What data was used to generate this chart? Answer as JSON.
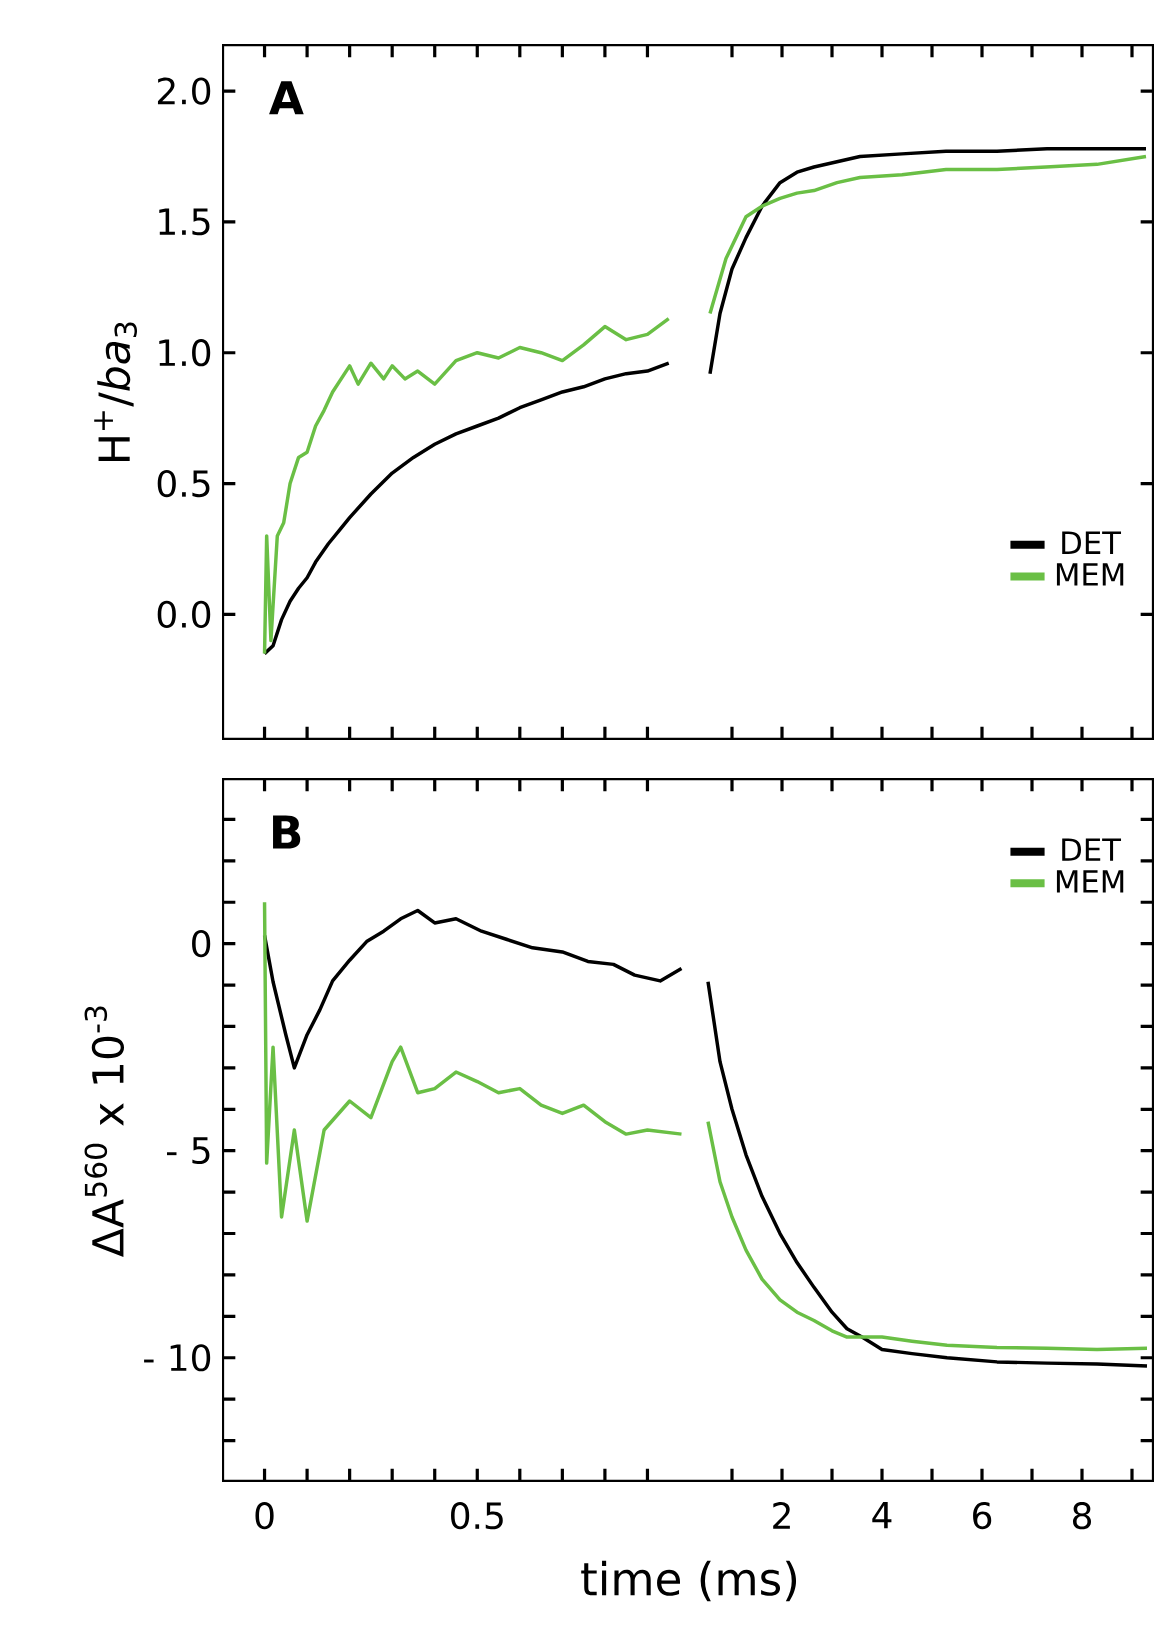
{
  "chart_data": [
    {
      "type": "line",
      "ylabel": "H$^{+}$/*ba*$_{3}$",
      "annotations": [
        "A"
      ],
      "xlim": [
        -0.1,
        1.0
      ],
      "ylim": [
        -0.48,
        2.18
      ],
      "xticks": [
        0,
        {
          "value": 0.1,
          "label": null
        },
        {
          "value": 0.2,
          "label": null
        },
        {
          "value": 0.3,
          "label": null
        },
        {
          "value": 0.4,
          "label": null
        },
        0.5,
        {
          "value": 0.6,
          "label": null
        },
        {
          "value": 0.7,
          "label": null
        },
        {
          "value": 0.8,
          "label": null
        },
        {
          "value": 0.9,
          "label": null
        }
      ],
      "yticks": [
        {
          "value": 0,
          "label": "0.0"
        },
        0.5,
        {
          "value": 1,
          "label": "1.0"
        },
        1.5,
        {
          "value": 2,
          "label": "2.0"
        }
      ],
      "tick_labels": "y",
      "series": [
        {
          "color": "#000000",
          "x": [
            0,
            0.02,
            0.04,
            0.06,
            0.08,
            0.1,
            0.12,
            0.15,
            0.18,
            0.2,
            0.25,
            0.3,
            0.35,
            0.4,
            0.45,
            0.5,
            0.55,
            0.6,
            0.65,
            0.7,
            0.75,
            0.8,
            0.85,
            0.9,
            0.95
          ],
          "values": [
            -0.15,
            -0.12,
            -0.02,
            0.05,
            0.1,
            0.14,
            0.2,
            0.27,
            0.33,
            0.37,
            0.46,
            0.54,
            0.6,
            0.65,
            0.69,
            0.72,
            0.75,
            0.79,
            0.82,
            0.85,
            0.87,
            0.9,
            0.92,
            0.93,
            0.96
          ]
        },
        {
          "color": "#6abf45",
          "x": [
            0,
            0.005,
            0.015,
            0.03,
            0.045,
            0.06,
            0.08,
            0.1,
            0.12,
            0.14,
            0.16,
            0.18,
            0.2,
            0.22,
            0.25,
            0.28,
            0.3,
            0.33,
            0.36,
            0.4,
            0.45,
            0.5,
            0.55,
            0.6,
            0.65,
            0.7,
            0.75,
            0.8,
            0.85,
            0.9,
            0.95
          ],
          "values": [
            -0.15,
            0.3,
            -0.1,
            0.3,
            0.35,
            0.5,
            0.6,
            0.62,
            0.72,
            0.78,
            0.85,
            0.9,
            0.95,
            0.88,
            0.96,
            0.9,
            0.95,
            0.9,
            0.93,
            0.88,
            0.97,
            1.0,
            0.98,
            1.02,
            1.0,
            0.97,
            1.03,
            1.1,
            1.05,
            1.07,
            1.13
          ]
        }
      ]
    },
    {
      "type": "line",
      "xlim": [
        0.16,
        9.44
      ],
      "ylim": [
        -0.48,
        2.18
      ],
      "xticks": [
        {
          "value": 1,
          "label": null
        },
        {
          "value": 2,
          "label": null
        },
        {
          "value": 3,
          "label": null
        },
        {
          "value": 4,
          "label": null
        },
        {
          "value": 5,
          "label": null
        },
        {
          "value": 6,
          "label": null
        },
        {
          "value": 7,
          "label": null
        },
        {
          "value": 8,
          "label": null
        },
        {
          "value": 9,
          "label": null
        }
      ],
      "yticks": [
        {
          "value": 0,
          "label": null
        },
        {
          "value": 0.5,
          "label": null
        },
        {
          "value": 1,
          "label": null
        },
        {
          "value": 1.5,
          "label": null
        },
        {
          "value": 2,
          "label": null
        }
      ],
      "tick_labels": false,
      "legend": "bottom right",
      "series": [
        {
          "name": "DET",
          "color": "#000000",
          "x": [
            0.56,
            0.76,
            1.0,
            1.28,
            1.6,
            1.96,
            2.3,
            2.64,
            3.1,
            3.56,
            4.4,
            5.28,
            6.3,
            7.3,
            8.3,
            9.28
          ],
          "values": [
            0.92,
            1.15,
            1.32,
            1.44,
            1.56,
            1.65,
            1.69,
            1.71,
            1.73,
            1.75,
            1.76,
            1.77,
            1.77,
            1.78,
            1.78,
            1.78
          ]
        },
        {
          "name": "MEM",
          "color": "#6abf45",
          "x": [
            0.56,
            0.88,
            1.28,
            1.6,
            1.96,
            2.3,
            2.64,
            3.1,
            3.56,
            4.4,
            5.28,
            6.3,
            7.28,
            8.3,
            9.28
          ],
          "values": [
            1.15,
            1.36,
            1.52,
            1.56,
            1.59,
            1.61,
            1.62,
            1.65,
            1.67,
            1.68,
            1.7,
            1.7,
            1.71,
            1.72,
            1.75
          ]
        }
      ]
    },
    {
      "type": "line",
      "xlabel": "time (ms)",
      "ylabel": "ΔA$^{560}$ x 10$^{-3}$",
      "annotations": [
        "B"
      ],
      "xlim": [
        -0.1,
        1.0
      ],
      "ylim": [
        -13,
        4
      ],
      "xticks": [
        0,
        {
          "value": 0.1,
          "label": null
        },
        {
          "value": 0.2,
          "label": null
        },
        {
          "value": 0.3,
          "label": null
        },
        {
          "value": 0.4,
          "label": null
        },
        0.5,
        {
          "value": 0.6,
          "label": null
        },
        {
          "value": 0.7,
          "label": null
        },
        {
          "value": 0.8,
          "label": null
        },
        {
          "value": 0.9,
          "label": null
        }
      ],
      "yticks": [
        {
          "value": -12,
          "label": null
        },
        {
          "value": -11,
          "label": null
        },
        {
          "value": -10,
          "label": "- 10"
        },
        {
          "value": -9,
          "label": null
        },
        {
          "value": -8,
          "label": null
        },
        {
          "value": -7,
          "label": null
        },
        {
          "value": -6,
          "label": null
        },
        {
          "value": -5,
          "label": "- 5"
        },
        {
          "value": -4,
          "label": null
        },
        {
          "value": -3,
          "label": null
        },
        {
          "value": -2,
          "label": null
        },
        {
          "value": -1,
          "label": null
        },
        0,
        {
          "value": 1,
          "label": null
        },
        {
          "value": 2,
          "label": null
        },
        {
          "value": 3,
          "label": null
        }
      ],
      "series": [
        {
          "color": "#000000",
          "x": [
            0,
            0.02,
            0.05,
            0.07,
            0.1,
            0.13,
            0.16,
            0.2,
            0.24,
            0.28,
            0.32,
            0.36,
            0.4,
            0.45,
            0.51,
            0.57,
            0.63,
            0.7,
            0.76,
            0.82,
            0.87,
            0.93,
            0.98
          ],
          "values": [
            0.2,
            -0.92,
            -2.2,
            -3.0,
            -2.2,
            -1.6,
            -0.9,
            -0.4,
            0.05,
            0.3,
            0.6,
            0.8,
            0.5,
            0.6,
            0.3,
            0.1,
            -0.1,
            -0.2,
            -0.43,
            -0.5,
            -0.76,
            -0.9,
            -0.6
          ]
        },
        {
          "color": "#6abf45",
          "x": [
            0,
            0.005,
            0.02,
            0.04,
            0.07,
            0.1,
            0.14,
            0.2,
            0.25,
            0.3,
            0.32,
            0.36,
            0.4,
            0.45,
            0.5,
            0.55,
            0.6,
            0.65,
            0.7,
            0.75,
            0.8,
            0.85,
            0.9,
            0.98
          ],
          "values": [
            1.0,
            -5.3,
            -2.5,
            -6.6,
            -4.5,
            -6.7,
            -4.5,
            -3.8,
            -4.2,
            -2.85,
            -2.5,
            -3.6,
            -3.5,
            -3.1,
            -3.33,
            -3.6,
            -3.5,
            -3.9,
            -4.1,
            -3.9,
            -4.3,
            -4.6,
            -4.5,
            -4.6
          ]
        }
      ]
    },
    {
      "type": "line",
      "xlim": [
        0.16,
        9.44
      ],
      "ylim": [
        -13,
        4
      ],
      "xticks": [
        {
          "value": 1,
          "label": null
        },
        2,
        {
          "value": 3,
          "label": null
        },
        4,
        {
          "value": 5,
          "label": null
        },
        6,
        {
          "value": 7,
          "label": null
        },
        8,
        {
          "value": 9,
          "label": null
        }
      ],
      "yticks": [
        {
          "value": -12,
          "label": null
        },
        {
          "value": -11,
          "label": null
        },
        {
          "value": -10,
          "label": null
        },
        {
          "value": -9,
          "label": null
        },
        {
          "value": -8,
          "label": null
        },
        {
          "value": -7,
          "label": null
        },
        {
          "value": -6,
          "label": null
        },
        {
          "value": -5,
          "label": null
        },
        {
          "value": -4,
          "label": null
        },
        {
          "value": -3,
          "label": null
        },
        {
          "value": -2,
          "label": null
        },
        {
          "value": -1,
          "label": null
        },
        {
          "value": 0,
          "label": null
        },
        {
          "value": 1,
          "label": null
        },
        {
          "value": 2,
          "label": null
        },
        {
          "value": 3,
          "label": null
        }
      ],
      "tick_labels": "x",
      "legend": "top right",
      "series": [
        {
          "name": "DET",
          "color": "#000000",
          "x": [
            0.52,
            0.76,
            1.0,
            1.28,
            1.6,
            1.96,
            2.3,
            2.64,
            3.0,
            3.3,
            3.6,
            4.0,
            4.6,
            5.3,
            6.3,
            7.3,
            8.3,
            9.3
          ],
          "values": [
            -0.92,
            -2.85,
            -4.0,
            -5.1,
            -6.1,
            -7.0,
            -7.7,
            -8.3,
            -8.9,
            -9.3,
            -9.5,
            -9.8,
            -9.9,
            -10.0,
            -10.1,
            -10.13,
            -10.15,
            -10.2
          ]
        },
        {
          "name": "MEM",
          "color": "#6abf45",
          "x": [
            0.52,
            0.76,
            1.0,
            1.28,
            1.6,
            1.96,
            2.3,
            2.64,
            3.0,
            3.3,
            4.0,
            4.6,
            5.3,
            6.3,
            7.3,
            8.3,
            9.3
          ],
          "values": [
            -4.3,
            -5.75,
            -6.6,
            -7.4,
            -8.1,
            -8.6,
            -8.9,
            -9.1,
            -9.35,
            -9.5,
            -9.5,
            -9.6,
            -9.7,
            -9.75,
            -9.77,
            -9.8,
            -9.77
          ]
        }
      ]
    }
  ]
}
